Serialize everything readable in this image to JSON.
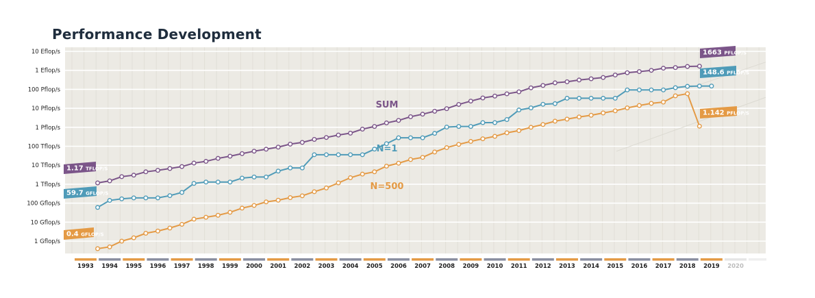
{
  "chart_data": {
    "type": "line",
    "title": "Performance Development",
    "y_scale": "log",
    "y_unit": "Gflop/s",
    "y_ticks": [
      {
        "label": "1 Gflop/s",
        "value": 1
      },
      {
        "label": "10 Gflop/s",
        "value": 10
      },
      {
        "label": "100 Gflop/s",
        "value": 100
      },
      {
        "label": "1 Tflop/s",
        "value": 1000
      },
      {
        "label": "10 Tflop/s",
        "value": 10000
      },
      {
        "label": "100 Tflop/s",
        "value": 100000
      },
      {
        "label": "1 Pflop/s",
        "value": 1000000
      },
      {
        "label": "10 Pflop/s",
        "value": 10000000
      },
      {
        "label": "100 Pflop/s",
        "value": 100000000
      },
      {
        "label": "1 Eflop/s",
        "value": 1000000000
      },
      {
        "label": "10 Eflop/s",
        "value": 10000000000
      }
    ],
    "x_ticks": [
      "1993",
      "1994",
      "1995",
      "1996",
      "1997",
      "1998",
      "1999",
      "2000",
      "2001",
      "2002",
      "2003",
      "2004",
      "2005",
      "2006",
      "2007",
      "2008",
      "2009",
      "2010",
      "2011",
      "2012",
      "2013",
      "2014",
      "2015",
      "2016",
      "2017",
      "2018",
      "2019"
    ],
    "x_future_tick": "2020",
    "x_start": 1993.5,
    "x_step": 0.5,
    "series": [
      {
        "name": "SUM",
        "color": "#7b5589",
        "values": [
          1170,
          1500,
          2500,
          3000,
          4500,
          5400,
          6700,
          8500,
          13000,
          16000,
          23000,
          30000,
          41000,
          55000,
          70000,
          90000,
          130000,
          160000,
          230000,
          290000,
          390000,
          490000,
          800000,
          1100000,
          1700000,
          2300000,
          3600000,
          4900000,
          7000000,
          9600000,
          16000000,
          24000000,
          35000000,
          44000000,
          58000000,
          74000000,
          120000000,
          160000000,
          220000000,
          250000000,
          310000000,
          360000000,
          420000000,
          570000000,
          750000000,
          860000000,
          1000000000,
          1300000000,
          1400000000,
          1600000000,
          1663000000
        ]
      },
      {
        "name": "N=1",
        "color": "#4f9bb8",
        "values": [
          59.7,
          140,
          170,
          190,
          190,
          190,
          250,
          370,
          1100,
          1300,
          1300,
          1300,
          2100,
          2400,
          2400,
          4900,
          7200,
          7200,
          35900,
          35900,
          35900,
          35900,
          35900,
          70700,
          136800,
          280600,
          280600,
          280600,
          478200,
          1026000,
          1105000,
          1105000,
          1759000,
          1759000,
          2566000,
          8162000,
          10510000,
          16320000,
          17590000,
          33860000,
          33860000,
          33860000,
          33860000,
          33860000,
          93010000,
          93010000,
          93010000,
          93010000,
          122300000,
          143500000,
          148600000,
          148600000
        ]
      },
      {
        "name": "N=500",
        "color": "#e49a45",
        "values": [
          0.4,
          0.5,
          1.0,
          1.5,
          2.6,
          3.4,
          4.9,
          7.7,
          14.4,
          18.2,
          23.0,
          33.0,
          55.0,
          76.0,
          117.0,
          144.0,
          196.0,
          245.0,
          403.0,
          634.0,
          1170.0,
          2200.0,
          3400.0,
          4500.0,
          9000.0,
          12800.0,
          20000.0,
          26000.0,
          50000.0,
          85000.0,
          126000.0,
          180000.0,
          248000.0,
          333000.0,
          512000.0,
          670000.0,
          1000000.0,
          1400000.0,
          2100000.0,
          2700000.0,
          3500000.0,
          4300000.0,
          5700000.0,
          7400000.0,
          10500000.0,
          14100000.0,
          18200000.0,
          21300000.0,
          45400000.0,
          59100000.0,
          1142000.0
        ]
      }
    ],
    "annotations": {
      "sum_start": {
        "value": "1.17",
        "unit": "TFLOP/S"
      },
      "n1_start": {
        "value": "59.7",
        "unit": "GFLOP/S"
      },
      "n500_start": {
        "value": "0.4",
        "unit": "GFLOP/S"
      },
      "sum_end": {
        "value": "1663",
        "unit": "PFLOP/S"
      },
      "n1_end": {
        "value": "148.6",
        "unit": "PFLOP/S"
      },
      "n500_end": {
        "value": "1.142",
        "unit": "PFLOP/S"
      }
    },
    "grid": true,
    "legend": "inline labels"
  }
}
